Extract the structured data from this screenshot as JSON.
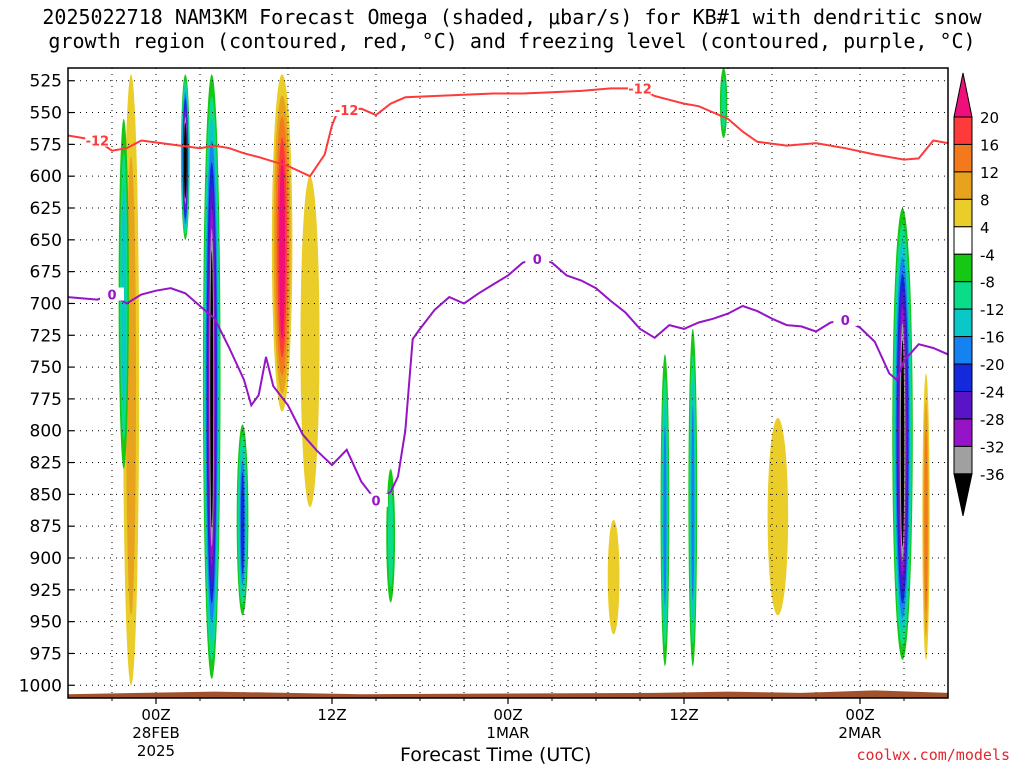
{
  "title_line1": "2025022718 NAM3KM Forecast Omega (shaded, μbar/s) for KB#1 with dendritic snow",
  "title_line2": "growth region (contoured, red, °C) and freezing level (contoured, purple, °C)",
  "x_axis_title": "Forecast Time (UTC)",
  "credit": "coolwx.com/models",
  "chart_data": {
    "type": "heatmap",
    "title": "2025022718 NAM3KM Forecast Omega (shaded, μbar/s) for KB#1 with dendritic snow growth region (contoured, red, °C) and freezing level (contoured, purple, °C)",
    "xlabel": "Forecast Time (UTC)",
    "ylabel": "",
    "x_ticks": [
      {
        "hours": 6,
        "label": [
          "00Z",
          "28FEB",
          "2025"
        ]
      },
      {
        "hours": 18,
        "label": [
          "12Z"
        ]
      },
      {
        "hours": 30,
        "label": [
          "00Z",
          "1MAR"
        ]
      },
      {
        "hours": 42,
        "label": [
          "12Z"
        ]
      },
      {
        "hours": 54,
        "label": [
          "00Z",
          "2MAR"
        ]
      }
    ],
    "x_range_hours": [
      0,
      60
    ],
    "y_ticks": [
      525,
      550,
      575,
      600,
      625,
      650,
      675,
      700,
      725,
      750,
      775,
      800,
      825,
      850,
      875,
      900,
      925,
      950,
      975,
      1000
    ],
    "y_range_mb": [
      515,
      1010
    ],
    "grid": true,
    "colorbar": {
      "labels": [
        "20",
        "16",
        "12",
        "8",
        "4",
        "-4",
        "-8",
        "-12",
        "-16",
        "-20",
        "-24",
        "-28",
        "-32",
        "-36"
      ],
      "colors": [
        "#ee0f78",
        "#ff3a3a",
        "#f27a1c",
        "#e8a31e",
        "#eacd28",
        "#ffffff",
        "#14c814",
        "#0adc8a",
        "#0ac8c8",
        "#1482f0",
        "#1428dc",
        "#5a14c8",
        "#9614c8",
        "#a0a0a0",
        "#000000"
      ]
    },
    "dgz_contour_minus12": {
      "label": "-12",
      "points": [
        [
          0,
          568
        ],
        [
          2,
          572
        ],
        [
          3,
          580
        ],
        [
          4,
          578
        ],
        [
          5,
          572
        ],
        [
          7,
          575
        ],
        [
          9,
          578
        ],
        [
          10,
          576
        ],
        [
          11,
          578
        ],
        [
          12,
          582
        ],
        [
          13,
          585
        ],
        [
          15,
          592
        ],
        [
          16.5,
          600
        ],
        [
          17.5,
          583
        ],
        [
          18,
          560
        ],
        [
          18.5,
          546
        ],
        [
          19,
          548
        ],
        [
          20,
          547
        ],
        [
          21,
          552
        ],
        [
          22,
          543
        ],
        [
          23,
          538
        ],
        [
          25,
          537
        ],
        [
          27,
          536
        ],
        [
          29,
          535
        ],
        [
          31,
          535
        ],
        [
          33,
          534
        ],
        [
          35,
          533
        ],
        [
          37,
          531
        ],
        [
          39,
          531
        ],
        [
          40,
          537
        ],
        [
          41,
          540
        ],
        [
          42,
          543
        ],
        [
          43,
          545
        ],
        [
          44,
          550
        ],
        [
          45,
          555
        ],
        [
          46,
          565
        ],
        [
          47,
          573
        ],
        [
          49,
          576
        ],
        [
          51,
          574
        ],
        [
          53,
          578
        ],
        [
          55,
          583
        ],
        [
          57,
          587
        ],
        [
          58,
          586
        ],
        [
          59,
          572
        ],
        [
          60,
          574
        ]
      ]
    },
    "freezing_level_0": {
      "label": "0",
      "points": [
        [
          0,
          695
        ],
        [
          2,
          697
        ],
        [
          3,
          693
        ],
        [
          4,
          700
        ],
        [
          5,
          693
        ],
        [
          6,
          690
        ],
        [
          7,
          688
        ],
        [
          8,
          692
        ],
        [
          9,
          702
        ],
        [
          10,
          712
        ],
        [
          11,
          735
        ],
        [
          12,
          760
        ],
        [
          12.5,
          780
        ],
        [
          13,
          772
        ],
        [
          13.5,
          742
        ],
        [
          14,
          765
        ],
        [
          15,
          780
        ],
        [
          16,
          803
        ],
        [
          17,
          816
        ],
        [
          18,
          827
        ],
        [
          19,
          815
        ],
        [
          20,
          840
        ],
        [
          21,
          855
        ],
        [
          22,
          848
        ],
        [
          22.5,
          836
        ],
        [
          23,
          800
        ],
        [
          23.5,
          728
        ],
        [
          24,
          720
        ],
        [
          25,
          705
        ],
        [
          26,
          695
        ],
        [
          27,
          700
        ],
        [
          28,
          692
        ],
        [
          29,
          685
        ],
        [
          30,
          678
        ],
        [
          31,
          668
        ],
        [
          32,
          665
        ],
        [
          33,
          668
        ],
        [
          34,
          678
        ],
        [
          35,
          682
        ],
        [
          36,
          688
        ],
        [
          37,
          698
        ],
        [
          38,
          707
        ],
        [
          39,
          720
        ],
        [
          40,
          727
        ],
        [
          41,
          717
        ],
        [
          42,
          720
        ],
        [
          43,
          715
        ],
        [
          44,
          712
        ],
        [
          45,
          708
        ],
        [
          46,
          702
        ],
        [
          47,
          706
        ],
        [
          48,
          712
        ],
        [
          49,
          717
        ],
        [
          50,
          718
        ],
        [
          51,
          722
        ],
        [
          52,
          715
        ],
        [
          53,
          713
        ],
        [
          54,
          719
        ],
        [
          55,
          730
        ],
        [
          56,
          755
        ],
        [
          56.5,
          760
        ],
        [
          57,
          745
        ],
        [
          58,
          732
        ],
        [
          59,
          735
        ],
        [
          60,
          740
        ]
      ]
    },
    "omega_features": [
      {
        "t": 4.3,
        "p_top": 520,
        "p_bot": 1000,
        "width_h": 1.1,
        "peak": 8,
        "note": "upward motion column"
      },
      {
        "t": 3.8,
        "p_top": 555,
        "p_bot": 830,
        "width_h": 0.7,
        "peak": -12
      },
      {
        "t": 9.8,
        "p_top": 520,
        "p_bot": 995,
        "width_h": 1.2,
        "peak": -36,
        "note": "strong descent column"
      },
      {
        "t": 8.0,
        "p_top": 520,
        "p_bot": 650,
        "width_h": 0.6,
        "peak": -36
      },
      {
        "t": 14.6,
        "p_top": 520,
        "p_bot": 785,
        "width_h": 1.4,
        "peak": 20,
        "note": "strong ascent column"
      },
      {
        "t": 11.9,
        "p_top": 795,
        "p_bot": 945,
        "width_h": 0.8,
        "peak": -20
      },
      {
        "t": 16.5,
        "p_top": 600,
        "p_bot": 860,
        "width_h": 1.3,
        "peak": 6
      },
      {
        "t": 22.0,
        "p_top": 830,
        "p_bot": 935,
        "width_h": 0.6,
        "peak": -10
      },
      {
        "t": 37.2,
        "p_top": 870,
        "p_bot": 960,
        "width_h": 0.8,
        "peak": 6
      },
      {
        "t": 40.7,
        "p_top": 740,
        "p_bot": 985,
        "width_h": 0.6,
        "peak": -16
      },
      {
        "t": 42.6,
        "p_top": 720,
        "p_bot": 985,
        "width_h": 0.6,
        "peak": -16
      },
      {
        "t": 44.7,
        "p_top": 515,
        "p_bot": 570,
        "width_h": 0.5,
        "peak": -8
      },
      {
        "t": 48.4,
        "p_top": 790,
        "p_bot": 945,
        "width_h": 1.4,
        "peak": 6
      },
      {
        "t": 56.9,
        "p_top": 625,
        "p_bot": 980,
        "width_h": 1.4,
        "peak": -36,
        "note": "strong descent column"
      },
      {
        "t": 58.5,
        "p_top": 755,
        "p_bot": 980,
        "width_h": 0.5,
        "peak": 14
      }
    ],
    "terrain_color": "#a0522d"
  }
}
